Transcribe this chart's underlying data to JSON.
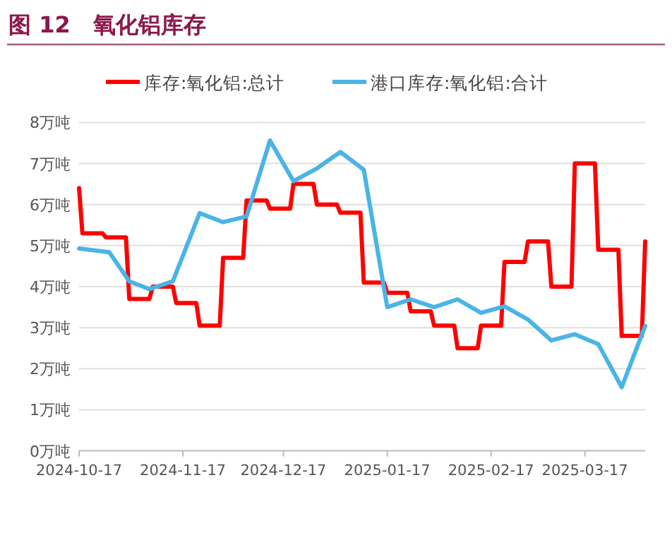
{
  "chart_data": {
    "type": "line",
    "title": "图 12　氧化铝库存",
    "xlim": [
      "2024-10-17",
      "2025-04-04"
    ],
    "xticks": [
      "2024-10-17",
      "2024-11-17",
      "2024-12-17",
      "2025-01-17",
      "2025-02-17",
      "2025-03-17"
    ],
    "ylim": [
      0,
      8
    ],
    "yticks": [
      {
        "value": 0,
        "label": "0万吨"
      },
      {
        "value": 1,
        "label": "1万吨"
      },
      {
        "value": 2,
        "label": "2万吨"
      },
      {
        "value": 3,
        "label": "3万吨"
      },
      {
        "value": 4,
        "label": "4万吨"
      },
      {
        "value": 5,
        "label": "5万吨"
      },
      {
        "value": 6,
        "label": "6万吨"
      },
      {
        "value": 7,
        "label": "7万吨"
      },
      {
        "value": 8,
        "label": "8万吨"
      }
    ],
    "grid": "y",
    "legend": "top",
    "series": [
      {
        "name": "库存:氧化铝:总计",
        "color": "#ff0000",
        "x": [
          "2024-10-17",
          "2024-10-18",
          "2024-10-24",
          "2024-10-25",
          "2024-10-31",
          "2024-11-01",
          "2024-11-07",
          "2024-11-08",
          "2024-11-14",
          "2024-11-15",
          "2024-11-21",
          "2024-11-22",
          "2024-11-28",
          "2024-11-29",
          "2024-12-05",
          "2024-12-06",
          "2024-12-12",
          "2024-12-13",
          "2024-12-19",
          "2024-12-20",
          "2024-12-26",
          "2024-12-27",
          "2025-01-02",
          "2025-01-03",
          "2025-01-09",
          "2025-01-10",
          "2025-01-16",
          "2025-01-17",
          "2025-01-23",
          "2025-01-24",
          "2025-01-30",
          "2025-01-31",
          "2025-02-06",
          "2025-02-07",
          "2025-02-13",
          "2025-02-14",
          "2025-02-20",
          "2025-02-21",
          "2025-02-27",
          "2025-02-28",
          "2025-03-06",
          "2025-03-07",
          "2025-03-13",
          "2025-03-14",
          "2025-03-20",
          "2025-03-21",
          "2025-03-27",
          "2025-03-28",
          "2025-04-03",
          "2025-04-04"
        ],
        "values": [
          6.4,
          5.3,
          5.3,
          5.2,
          5.2,
          3.7,
          3.7,
          4.0,
          4.0,
          3.6,
          3.6,
          3.05,
          3.05,
          4.7,
          4.7,
          6.1,
          6.1,
          5.9,
          5.9,
          6.5,
          6.5,
          6.0,
          6.0,
          5.8,
          5.8,
          4.1,
          4.1,
          3.85,
          3.85,
          3.4,
          3.4,
          3.05,
          3.05,
          2.5,
          2.5,
          3.05,
          3.05,
          4.6,
          4.6,
          5.1,
          5.1,
          4.0,
          4.0,
          7.0,
          7.0,
          4.9,
          4.9,
          2.8,
          2.8,
          5.1
        ]
      },
      {
        "name": "港口库存:氧化铝:合计",
        "color": "#4ab4e6",
        "x": [
          "2024-10-17",
          "2024-10-26",
          "2024-11-01",
          "2024-11-07",
          "2024-11-14",
          "2024-11-22",
          "2024-11-29",
          "2024-12-06",
          "2024-12-13",
          "2024-12-20",
          "2024-12-27",
          "2025-01-03",
          "2025-01-10",
          "2025-01-17",
          "2025-01-24",
          "2025-01-31",
          "2025-02-07",
          "2025-02-14",
          "2025-02-21",
          "2025-02-28",
          "2025-03-07",
          "2025-03-14",
          "2025-03-21",
          "2025-03-28",
          "2025-04-04"
        ],
        "values": [
          4.93,
          4.84,
          4.13,
          3.94,
          4.13,
          5.79,
          5.57,
          5.71,
          7.56,
          6.57,
          6.88,
          7.28,
          6.85,
          3.5,
          3.69,
          3.5,
          3.69,
          3.36,
          3.52,
          3.2,
          2.69,
          2.84,
          2.6,
          1.55,
          3.04
        ]
      }
    ]
  }
}
